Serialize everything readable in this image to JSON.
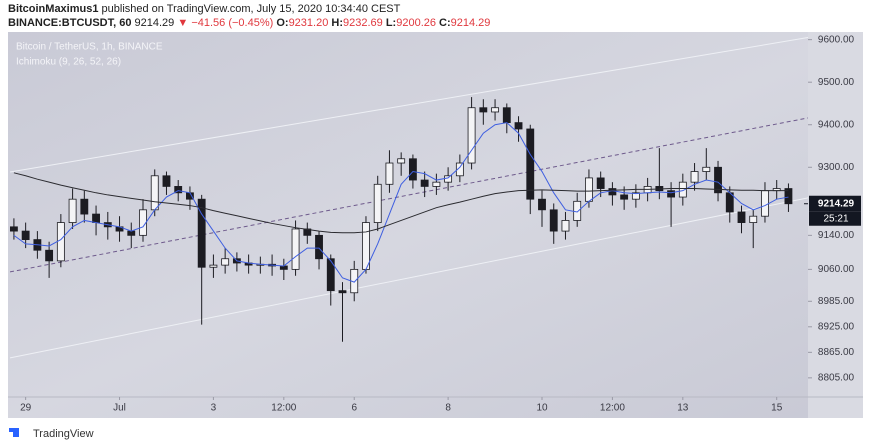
{
  "header": {
    "author": "BitcoinMaximus1",
    "published": "published on TradingView.com, July 15, 2020 10:34:40 CEST",
    "symbol": "BINANCE:BTCUSDT, 60",
    "price": "9214.29",
    "arrow": "▼",
    "change": "−41.56 (−0.45%)",
    "ohlc": [
      {
        "label": "O:",
        "value": "9231.20"
      },
      {
        "label": "H:",
        "value": "9232.69"
      },
      {
        "label": "L:",
        "value": "9200.26"
      },
      {
        "label": "C:",
        "value": "9214.29"
      }
    ]
  },
  "chart_data": {
    "type": "candlestick",
    "title": "Bitcoin / TetherUS, 1h, BINANCE",
    "indicator": "Ichimoku (9, 26, 52, 26)",
    "color": "#1c1c22",
    "grid": false,
    "x": [
      -6,
      0,
      6,
      12,
      18,
      24,
      30,
      36,
      42,
      48,
      54,
      60,
      66,
      72,
      78,
      84,
      90,
      96,
      102,
      108,
      114,
      120,
      126,
      132,
      138,
      144,
      150,
      156,
      162,
      168,
      174,
      180,
      186,
      192,
      198,
      204,
      210,
      216,
      222,
      228,
      234,
      240,
      246,
      252,
      258,
      264,
      270,
      276,
      282,
      288,
      294,
      300,
      306,
      312,
      318,
      324,
      330,
      336,
      342,
      348,
      354,
      360,
      366,
      372,
      378,
      384,
      390
    ],
    "open": [
      9160,
      9150,
      9130,
      9105,
      9080,
      9170,
      9225,
      9190,
      9170,
      9160,
      9150,
      9140,
      9200,
      9280,
      9255,
      9240,
      9225,
      9065,
      9070,
      9085,
      9075,
      9070,
      9072,
      9068,
      9060,
      9155,
      9140,
      9085,
      9010,
      9005,
      9060,
      9170,
      9260,
      9310,
      9320,
      9270,
      9255,
      9265,
      9280,
      9310,
      9440,
      9430,
      9440,
      9405,
      9390,
      9225,
      9200,
      9150,
      9175,
      9220,
      9275,
      9250,
      9235,
      9225,
      9240,
      9255,
      9245,
      9230,
      9265,
      9290,
      9300,
      9240,
      9195,
      9170,
      9185,
      9245,
      9250
    ],
    "high": [
      9180,
      9170,
      9150,
      9125,
      9190,
      9250,
      9245,
      9210,
      9195,
      9185,
      9170,
      9225,
      9295,
      9290,
      9270,
      9255,
      9235,
      9095,
      9110,
      9100,
      9095,
      9090,
      9095,
      9085,
      9175,
      9170,
      9150,
      9095,
      9030,
      9080,
      9185,
      9280,
      9340,
      9335,
      9330,
      9290,
      9285,
      9300,
      9330,
      9465,
      9460,
      9460,
      9450,
      9420,
      9400,
      9245,
      9215,
      9195,
      9240,
      9295,
      9290,
      9265,
      9255,
      9260,
      9275,
      9345,
      9265,
      9285,
      9310,
      9345,
      9315,
      9255,
      9210,
      9200,
      9265,
      9270,
      9262
    ],
    "low": [
      9130,
      9110,
      9085,
      9040,
      9065,
      9155,
      9170,
      9140,
      9130,
      9125,
      9110,
      9125,
      9185,
      9235,
      9220,
      9200,
      8930,
      9040,
      9050,
      9055,
      9050,
      9050,
      9045,
      9035,
      9045,
      9120,
      9060,
      8975,
      8890,
      8985,
      9050,
      9150,
      9240,
      9280,
      9250,
      9230,
      9235,
      9245,
      9265,
      9295,
      9400,
      9410,
      9380,
      9360,
      9190,
      9160,
      9120,
      9130,
      9160,
      9205,
      9230,
      9210,
      9200,
      9205,
      9220,
      9225,
      9160,
      9210,
      9245,
      9270,
      9220,
      9170,
      9145,
      9110,
      9170,
      9225,
      9195
    ],
    "close": [
      9150,
      9130,
      9105,
      9080,
      9170,
      9225,
      9190,
      9170,
      9160,
      9150,
      9140,
      9200,
      9280,
      9255,
      9240,
      9225,
      9065,
      9070,
      9085,
      9075,
      9070,
      9072,
      9068,
      9060,
      9155,
      9140,
      9085,
      9010,
      9005,
      9060,
      9170,
      9260,
      9310,
      9320,
      9270,
      9255,
      9265,
      9280,
      9310,
      9440,
      9430,
      9440,
      9405,
      9390,
      9225,
      9200,
      9150,
      9175,
      9220,
      9275,
      9250,
      9235,
      9225,
      9240,
      9255,
      9245,
      9230,
      9265,
      9290,
      9300,
      9240,
      9195,
      9170,
      9185,
      9245,
      9250,
      9214.29
    ],
    "lines": [
      {
        "color": "#3f5fe0",
        "values": [
          9140,
          9120,
          9118,
          9115,
          9130,
          9160,
          9175,
          9170,
          9165,
          9160,
          9150,
          9160,
          9200,
          9230,
          9245,
          9240,
          9190,
          9150,
          9110,
          9080,
          9075,
          9072,
          9070,
          9068,
          9090,
          9110,
          9110,
          9080,
          9040,
          9030,
          9060,
          9120,
          9190,
          9260,
          9290,
          9285,
          9270,
          9275,
          9300,
          9340,
          9380,
          9400,
          9405,
          9380,
          9330,
          9290,
          9240,
          9200,
          9195,
          9220,
          9240,
          9245,
          9240,
          9238,
          9240,
          9242,
          9240,
          9245,
          9260,
          9270,
          9265,
          9240,
          9215,
          9200,
          9210,
          9225,
          9230
        ]
      },
      {
        "color": "#2b2b30",
        "values": [
          9287,
          9280,
          9272,
          9265,
          9258,
          9252,
          9246,
          9240,
          9235,
          9231,
          9227,
          9223,
          9219,
          9216,
          9213,
          9210,
          9205,
          9198,
          9192,
          9186,
          9180,
          9174,
          9168,
          9163,
          9158,
          9154,
          9150,
          9147,
          9146,
          9146,
          9148,
          9155,
          9165,
          9175,
          9185,
          9195,
          9205,
          9212,
          9218,
          9225,
          9232,
          9238,
          9242,
          9245,
          9246,
          9247,
          9246,
          9245,
          9244,
          9244,
          9245,
          9246,
          9247,
          9248,
          9248,
          9249,
          9250,
          9250,
          9250,
          9249,
          9248,
          9247,
          9246,
          9246,
          9245,
          9245,
          9245
        ]
      }
    ],
    "channel": [
      {
        "x": [
          -8,
          400
        ],
        "values": [
          9289,
          9605
        ],
        "color": "#eef0f5",
        "dashed": false
      },
      {
        "x": [
          -8,
          400
        ],
        "values": [
          9054,
          9416
        ],
        "color": "#6e5a8c",
        "dashed": true
      },
      {
        "x": [
          -8,
          400
        ],
        "values": [
          8852,
          9228
        ],
        "color": "#eef0f5",
        "dashed": false
      }
    ],
    "xlim": [
      -8,
      400
    ],
    "ylim": [
      8760,
      9618
    ],
    "xticks": [
      {
        "value": 0,
        "label": "29"
      },
      {
        "value": 48,
        "label": "Jul"
      },
      {
        "value": 96,
        "label": "3"
      },
      {
        "value": 132,
        "label": "12:00"
      },
      {
        "value": 168,
        "label": "6"
      },
      {
        "value": 216,
        "label": "8"
      },
      {
        "value": 264,
        "label": "10"
      },
      {
        "value": 300,
        "label": "12:00"
      },
      {
        "value": 336,
        "label": "13"
      },
      {
        "value": 384,
        "label": "15"
      }
    ],
    "yticks": [
      {
        "value": 9600,
        "label": "9600.00"
      },
      {
        "value": 9500,
        "label": "9500.00"
      },
      {
        "value": 9400,
        "label": "9400.00"
      },
      {
        "value": 9300,
        "label": "9300.00"
      },
      {
        "value": 9140,
        "label": "9140.00"
      },
      {
        "value": 9060,
        "label": "9060.00"
      },
      {
        "value": 8985,
        "label": "8985.00"
      },
      {
        "value": 8925,
        "label": "8925.00"
      },
      {
        "value": 8865,
        "label": "8865.00"
      },
      {
        "value": 8805,
        "label": "8805.00"
      }
    ],
    "last_price": 9214.29,
    "countdown": "25:21"
  },
  "footer": {
    "brand": "TradingView"
  }
}
